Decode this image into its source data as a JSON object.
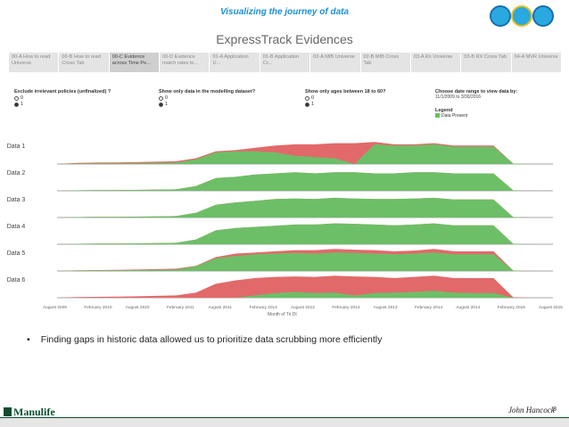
{
  "slide": {
    "title": "Visualizing the journey of data",
    "bullet": "Finding gaps in historic data allowed us to prioritize data scrubbing more efficiently",
    "page_number": "8",
    "logo_text": "Manulife",
    "signature_text": "John Hancock"
  },
  "dashboard": {
    "title": "ExpressTrack Evidences",
    "tabs": [
      {
        "label": "00-A How to read Universe"
      },
      {
        "label": "00-B How to read Cross Tab"
      },
      {
        "label": "00-C Evidence across Time Pe..."
      },
      {
        "label": "00-D Evidence match rates to..."
      },
      {
        "label": "01-A Application U..."
      },
      {
        "label": "01-B Application Cr..."
      },
      {
        "label": "02-A MIB Universe"
      },
      {
        "label": "02-B MIB Cross Tab"
      },
      {
        "label": "03-A Rx Universe"
      },
      {
        "label": "03-B RX Cross Tab"
      },
      {
        "label": "04-A MVR Universe"
      }
    ],
    "filters": [
      {
        "label": "Exclude irrelevant policies (unfinalized) ?",
        "options": [
          "0",
          "1"
        ],
        "selected": "1"
      },
      {
        "label": "Show only data in the modelling dataset?",
        "options": [
          "0",
          "1"
        ],
        "selected": "1"
      },
      {
        "label": "Show only ages between 18 to 60?",
        "options": [
          "0",
          "1"
        ],
        "selected": "1"
      }
    ],
    "date_range": {
      "label": "Choose date range to view data by:",
      "value": "11/1/2009 to 3/30/2016"
    },
    "legend": {
      "title": "Legend",
      "item": "Data Present"
    },
    "colors": {
      "present": "#6dbf67",
      "gap": "#e2696a"
    },
    "xaxis_title": "Month of Tri Dt",
    "xticks": [
      "August 2009",
      "February 2010",
      "August 2010",
      "February 2011",
      "August 2011",
      "February 2012",
      "August 2012",
      "February 2013",
      "August 2013",
      "February 2014",
      "August 2014",
      "February 2015",
      "August 2015"
    ]
  },
  "chart_data": {
    "type": "area",
    "x": [
      "2009-08",
      "2009-11",
      "2010-02",
      "2010-05",
      "2010-08",
      "2010-11",
      "2011-02",
      "2011-05",
      "2011-08",
      "2011-11",
      "2012-02",
      "2012-05",
      "2012-08",
      "2012-11",
      "2013-02",
      "2013-05",
      "2013-08",
      "2013-11",
      "2014-02",
      "2014-05",
      "2014-08",
      "2014-11",
      "2015-02",
      "2015-05",
      "2015-08",
      "2015-11"
    ],
    "series": [
      {
        "name": "Data 1",
        "total": [
          0,
          0.05,
          0.06,
          0.07,
          0.08,
          0.1,
          0.12,
          0.25,
          0.55,
          0.6,
          0.7,
          0.8,
          0.85,
          0.85,
          0.9,
          0.9,
          0.95,
          0.85,
          0.85,
          0.9,
          0.8,
          0.8,
          0.8,
          0.02,
          0.0,
          0.0
        ],
        "present": [
          0,
          0.02,
          0.03,
          0.03,
          0.04,
          0.05,
          0.06,
          0.2,
          0.5,
          0.55,
          0.55,
          0.5,
          0.35,
          0.3,
          0.25,
          0.0,
          0.85,
          0.8,
          0.8,
          0.85,
          0.75,
          0.75,
          0.75,
          0.02,
          0.0,
          0.0
        ]
      },
      {
        "name": "Data 2",
        "total": [
          0,
          0.02,
          0.03,
          0.03,
          0.04,
          0.05,
          0.06,
          0.2,
          0.55,
          0.6,
          0.7,
          0.75,
          0.8,
          0.75,
          0.8,
          0.8,
          0.75,
          0.75,
          0.8,
          0.8,
          0.75,
          0.75,
          0.75,
          0.02,
          0.0,
          0.0
        ],
        "present": [
          0,
          0.02,
          0.03,
          0.03,
          0.04,
          0.05,
          0.06,
          0.2,
          0.55,
          0.6,
          0.7,
          0.75,
          0.8,
          0.75,
          0.8,
          0.8,
          0.75,
          0.75,
          0.8,
          0.8,
          0.75,
          0.75,
          0.75,
          0.02,
          0.0,
          0.0
        ]
      },
      {
        "name": "Data 3",
        "total": [
          0,
          0.02,
          0.03,
          0.03,
          0.04,
          0.05,
          0.06,
          0.2,
          0.55,
          0.65,
          0.72,
          0.8,
          0.82,
          0.8,
          0.85,
          0.82,
          0.8,
          0.8,
          0.82,
          0.85,
          0.78,
          0.78,
          0.78,
          0.02,
          0.0,
          0.0
        ],
        "present": [
          0,
          0.02,
          0.03,
          0.03,
          0.04,
          0.05,
          0.06,
          0.2,
          0.55,
          0.65,
          0.72,
          0.8,
          0.82,
          0.8,
          0.85,
          0.82,
          0.8,
          0.8,
          0.82,
          0.85,
          0.78,
          0.78,
          0.78,
          0.02,
          0.0,
          0.0
        ]
      },
      {
        "name": "Data 4",
        "total": [
          0,
          0.02,
          0.03,
          0.03,
          0.04,
          0.05,
          0.06,
          0.2,
          0.6,
          0.7,
          0.75,
          0.8,
          0.85,
          0.85,
          0.9,
          0.88,
          0.85,
          0.82,
          0.85,
          0.9,
          0.82,
          0.82,
          0.82,
          0.02,
          0.0,
          0.0
        ],
        "present": [
          0,
          0.02,
          0.03,
          0.03,
          0.04,
          0.05,
          0.06,
          0.2,
          0.6,
          0.7,
          0.75,
          0.8,
          0.85,
          0.85,
          0.9,
          0.88,
          0.85,
          0.82,
          0.85,
          0.9,
          0.82,
          0.82,
          0.82,
          0.02,
          0.0,
          0.0
        ]
      },
      {
        "name": "Data 5",
        "total": [
          0,
          0.03,
          0.04,
          0.05,
          0.06,
          0.08,
          0.1,
          0.22,
          0.6,
          0.75,
          0.8,
          0.85,
          0.9,
          0.9,
          0.95,
          0.92,
          0.9,
          0.85,
          0.88,
          0.95,
          0.85,
          0.85,
          0.85,
          0.02,
          0.0,
          0.0
        ],
        "present": [
          0,
          0.02,
          0.03,
          0.03,
          0.04,
          0.05,
          0.06,
          0.2,
          0.55,
          0.65,
          0.72,
          0.75,
          0.78,
          0.75,
          0.8,
          0.78,
          0.75,
          0.72,
          0.75,
          0.8,
          0.72,
          0.72,
          0.72,
          0.02,
          0.0,
          0.0
        ]
      },
      {
        "name": "Data 6",
        "total": [
          0,
          0.03,
          0.04,
          0.05,
          0.06,
          0.08,
          0.1,
          0.22,
          0.6,
          0.75,
          0.85,
          0.9,
          0.92,
          0.9,
          0.95,
          0.92,
          0.9,
          0.85,
          0.9,
          0.95,
          0.85,
          0.85,
          0.85,
          0.02,
          0.0,
          0.0
        ],
        "present": [
          0,
          0,
          0,
          0,
          0,
          0,
          0,
          0,
          0,
          0,
          0.1,
          0.2,
          0.25,
          0.2,
          0.22,
          0.1,
          0.2,
          0.22,
          0.25,
          0.3,
          0.22,
          0.2,
          0.2,
          0.0,
          0.0,
          0.0
        ]
      }
    ]
  }
}
